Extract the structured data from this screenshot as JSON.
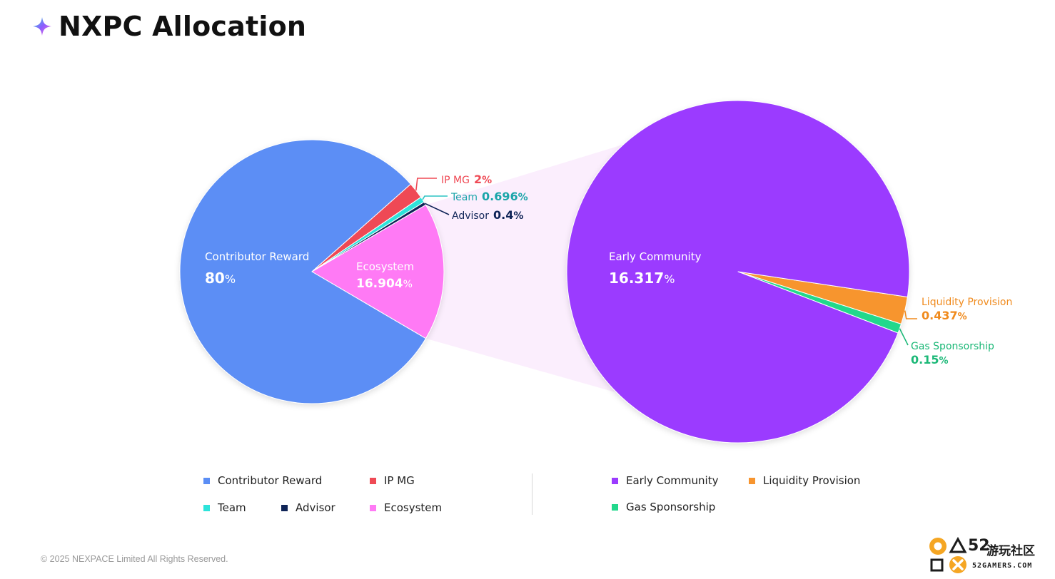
{
  "page": {
    "title": "NXPC Allocation",
    "copyright": "© 2025 NEXPACE Limited All Rights Reserved."
  },
  "watermark": {
    "number": "52",
    "text_cn": "游玩社区",
    "text_en": "52GAMERS.COM"
  },
  "colors": {
    "contributor_reward": "#5b8ef5",
    "ip_mg": "#ef4a55",
    "team": "#2de3da",
    "advisor": "#0f2457",
    "ecosystem": "#ff7af5",
    "early_community": "#9b3bff",
    "liquidity_provision": "#f7952f",
    "gas_sponsorship": "#22d88c",
    "label_ip_mg": "#ef4a55",
    "label_team": "#1aa5a9",
    "label_advisor": "#0f2457",
    "label_liquidity": "#f08a1c",
    "label_gas": "#1bb877",
    "connector_fill": "#fbeefd"
  },
  "chart_data": [
    {
      "type": "pie",
      "slices": [
        {
          "key": "contributor_reward",
          "label": "Contributor Reward",
          "value": 80,
          "value_text": "80",
          "unit": "%"
        },
        {
          "key": "ip_mg",
          "label": "IP MG",
          "value": 2,
          "value_text": "2",
          "unit": "%"
        },
        {
          "key": "team",
          "label": "Team",
          "value": 0.696,
          "value_text": "0.696",
          "unit": "%"
        },
        {
          "key": "advisor",
          "label": "Advisor",
          "value": 0.4,
          "value_text": "0.4",
          "unit": "%"
        },
        {
          "key": "ecosystem",
          "label": "Ecosystem",
          "value": 16.904,
          "value_text": "16.904",
          "unit": "%"
        }
      ]
    },
    {
      "type": "pie",
      "slices": [
        {
          "key": "early_community",
          "label": "Early Community",
          "value": 16.317,
          "value_text": "16.317",
          "unit": "%"
        },
        {
          "key": "liquidity_provision",
          "label": "Liquidity Provision",
          "value": 0.437,
          "value_text": "0.437",
          "unit": "%"
        },
        {
          "key": "gas_sponsorship",
          "label": "Gas Sponsorship",
          "value": 0.15,
          "value_text": "0.15",
          "unit": "%"
        }
      ]
    }
  ],
  "legend": {
    "left": [
      "Contributor Reward",
      "IP MG",
      "Team",
      "Advisor",
      "Ecosystem"
    ],
    "right": [
      "Early Community",
      "Liquidity Provision",
      "Gas Sponsorship"
    ]
  }
}
